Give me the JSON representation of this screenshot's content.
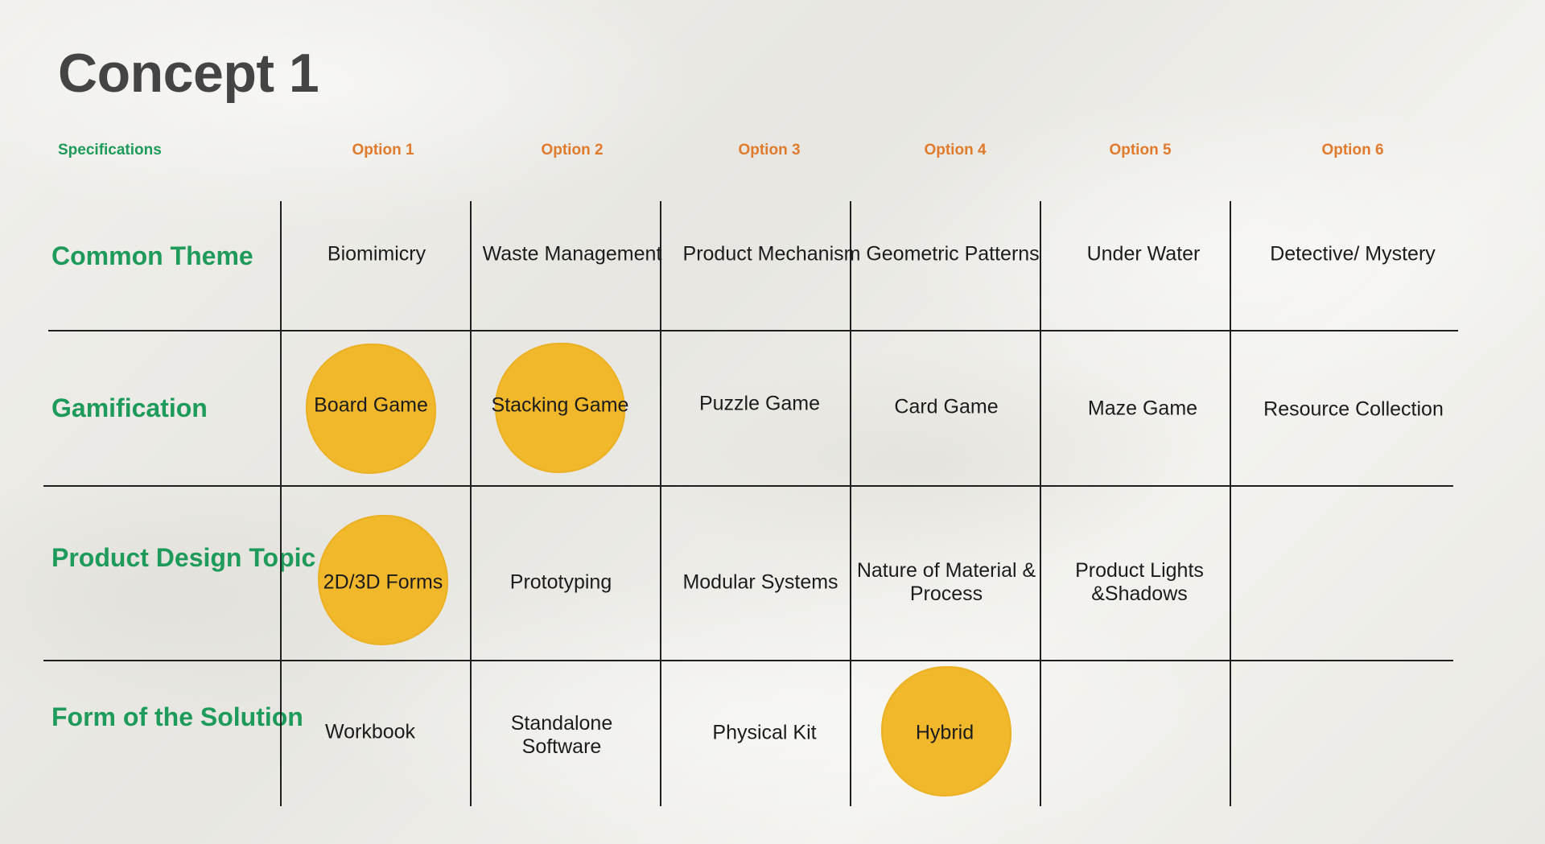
{
  "title": "Concept 1",
  "header": {
    "specifications": "Specifications",
    "options": [
      "Option 1",
      "Option 2",
      "Option 3",
      "Option 4",
      "Option 5",
      "Option 6"
    ]
  },
  "rows": [
    {
      "label": "Common Theme",
      "cells": [
        "Biomimicry",
        "Waste Management",
        "Product Mechanism",
        "Geometric Patterns",
        "Under Water",
        "Detective/ Mystery"
      ],
      "selected": [
        false,
        false,
        false,
        false,
        false,
        false
      ]
    },
    {
      "label": "Gamification",
      "cells": [
        "Board Game",
        "Stacking Game",
        "Puzzle Game",
        "Card Game",
        "Maze Game",
        "Resource Collection"
      ],
      "selected": [
        true,
        true,
        false,
        false,
        false,
        false
      ]
    },
    {
      "label": "Product Design Topic",
      "cells": [
        "2D/3D Forms",
        "Prototyping",
        "Modular Systems",
        "Nature of Material & Process",
        "Product Lights &Shadows",
        ""
      ],
      "selected": [
        true,
        false,
        false,
        false,
        false,
        false
      ]
    },
    {
      "label": "Form of the Solution",
      "cells": [
        "Workbook",
        "Standalone Software",
        "Physical Kit",
        "Hybrid",
        "",
        ""
      ],
      "selected": [
        false,
        false,
        false,
        true,
        false,
        false
      ]
    }
  ],
  "colors": {
    "heading": "#444444",
    "spec_green": "#1e9a5a",
    "option_orange": "#e07a2c",
    "highlight_yellow": "#f1b82c",
    "grid_line": "#1f1f1f"
  }
}
